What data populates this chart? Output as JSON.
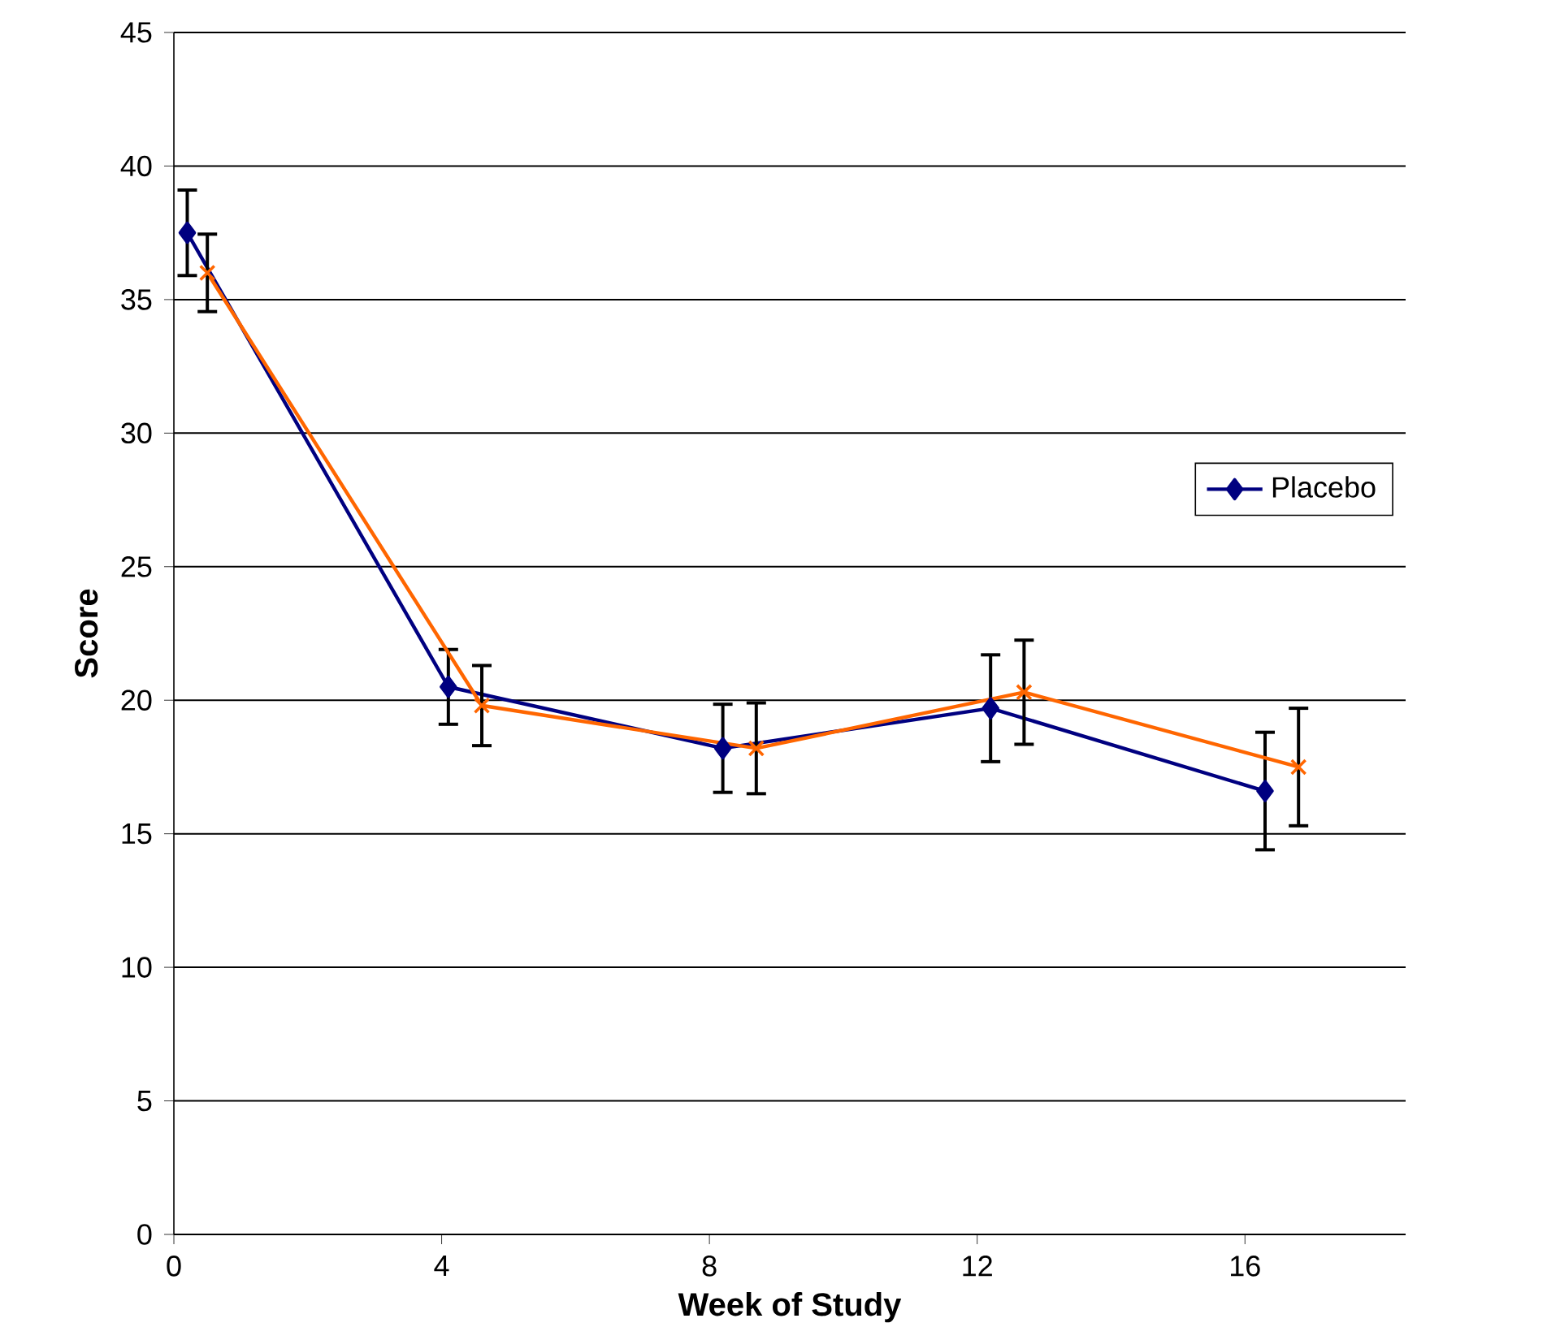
{
  "chart_data": {
    "type": "line",
    "xlabel": "Week of Study",
    "ylabel": "Score",
    "xlim": [
      0,
      18.4
    ],
    "xticks": [
      0,
      4,
      8,
      12,
      16
    ],
    "ylim": [
      0,
      45
    ],
    "yticks": [
      0,
      5,
      10,
      15,
      20,
      25,
      30,
      35,
      40,
      45
    ],
    "grid": "y",
    "legend": "right",
    "series": [
      {
        "name": "Placebo",
        "color": "#000080",
        "marker": "diamond",
        "x": [
          0.2,
          4.1,
          8.2,
          12.2,
          16.3
        ],
        "values": [
          37.5,
          20.5,
          18.2,
          19.7,
          16.6
        ],
        "errors": [
          1.6,
          1.4,
          1.65,
          2.0,
          2.2
        ]
      },
      {
        "color": "#ff6600",
        "marker": "cross",
        "x": [
          0.5,
          4.6,
          8.7,
          12.7,
          16.8
        ],
        "values": [
          36.0,
          19.8,
          18.2,
          20.3,
          17.5
        ],
        "errors": [
          1.45,
          1.5,
          1.7,
          1.95,
          2.2
        ]
      }
    ]
  }
}
